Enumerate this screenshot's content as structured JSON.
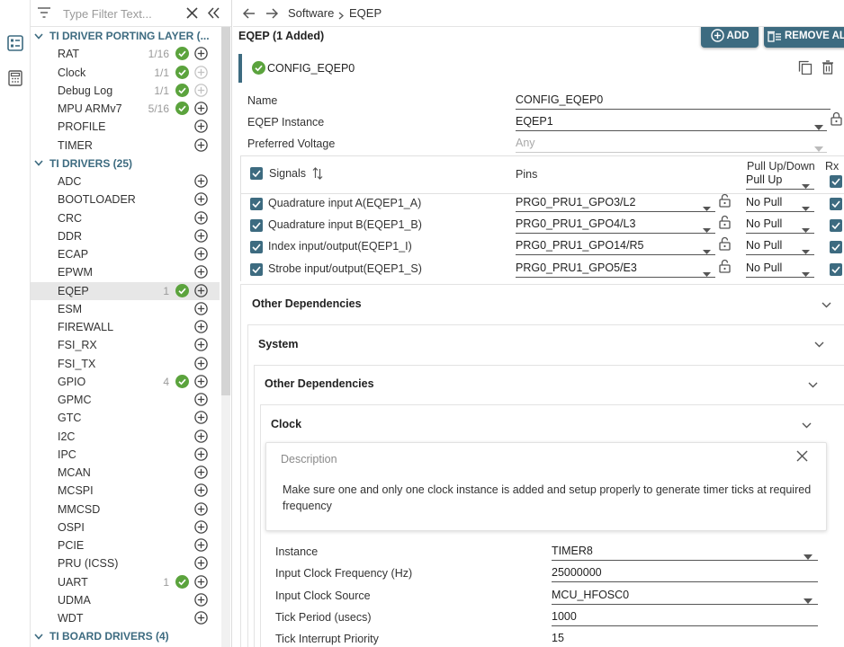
{
  "sidebar": {
    "filter_placeholder": "Type Filter Text...",
    "categories": [
      {
        "label": "TI DRIVER PORTING LAYER (...",
        "items": [
          {
            "label": "RAT",
            "count": "1/16",
            "status": "ok",
            "add_enabled": true
          },
          {
            "label": "Clock",
            "count": "1/1",
            "status": "ok",
            "add_enabled": false
          },
          {
            "label": "Debug Log",
            "count": "1/1",
            "status": "ok",
            "add_enabled": false
          },
          {
            "label": "MPU ARMv7",
            "count": "5/16",
            "status": "ok",
            "add_enabled": true
          },
          {
            "label": "PROFILE",
            "count": "",
            "status": "",
            "add_enabled": true
          },
          {
            "label": "TIMER",
            "count": "",
            "status": "",
            "add_enabled": true
          }
        ]
      },
      {
        "label": "TI DRIVERS (25)",
        "items": [
          {
            "label": "ADC",
            "count": "",
            "status": "",
            "add_enabled": true
          },
          {
            "label": "BOOTLOADER",
            "count": "",
            "status": "",
            "add_enabled": true
          },
          {
            "label": "CRC",
            "count": "",
            "status": "",
            "add_enabled": true
          },
          {
            "label": "DDR",
            "count": "",
            "status": "",
            "add_enabled": true
          },
          {
            "label": "ECAP",
            "count": "",
            "status": "",
            "add_enabled": true
          },
          {
            "label": "EPWM",
            "count": "",
            "status": "",
            "add_enabled": true
          },
          {
            "label": "EQEP",
            "count": "1",
            "status": "ok",
            "add_enabled": true,
            "selected": true
          },
          {
            "label": "ESM",
            "count": "",
            "status": "",
            "add_enabled": true
          },
          {
            "label": "FIREWALL",
            "count": "",
            "status": "",
            "add_enabled": true
          },
          {
            "label": "FSI_RX",
            "count": "",
            "status": "",
            "add_enabled": true
          },
          {
            "label": "FSI_TX",
            "count": "",
            "status": "",
            "add_enabled": true
          },
          {
            "label": "GPIO",
            "count": "4",
            "status": "ok",
            "add_enabled": true
          },
          {
            "label": "GPMC",
            "count": "",
            "status": "",
            "add_enabled": true
          },
          {
            "label": "GTC",
            "count": "",
            "status": "",
            "add_enabled": true
          },
          {
            "label": "I2C",
            "count": "",
            "status": "",
            "add_enabled": true
          },
          {
            "label": "IPC",
            "count": "",
            "status": "",
            "add_enabled": true
          },
          {
            "label": "MCAN",
            "count": "",
            "status": "",
            "add_enabled": true
          },
          {
            "label": "MCSPI",
            "count": "",
            "status": "",
            "add_enabled": true
          },
          {
            "label": "MMCSD",
            "count": "",
            "status": "",
            "add_enabled": true
          },
          {
            "label": "OSPI",
            "count": "",
            "status": "",
            "add_enabled": true
          },
          {
            "label": "PCIE",
            "count": "",
            "status": "",
            "add_enabled": true
          },
          {
            "label": "PRU (ICSS)",
            "count": "",
            "status": "",
            "add_enabled": true
          },
          {
            "label": "UART",
            "count": "1",
            "status": "ok",
            "add_enabled": true
          },
          {
            "label": "UDMA",
            "count": "",
            "status": "",
            "add_enabled": true
          },
          {
            "label": "WDT",
            "count": "",
            "status": "",
            "add_enabled": true
          }
        ]
      },
      {
        "label": "TI BOARD DRIVERS (4)",
        "items": []
      }
    ]
  },
  "breadcrumb": {
    "root": "Software",
    "current": "EQEP"
  },
  "module": {
    "title": "EQEP (1 Added)",
    "add_label": "ADD",
    "remove_all_label": "REMOVE ALL",
    "instance_name": "CONFIG_EQEP0"
  },
  "config": {
    "name_label": "Name",
    "name_value": "CONFIG_EQEP0",
    "instance_label": "EQEP Instance",
    "instance_value": "EQEP1",
    "voltage_label": "Preferred Voltage",
    "voltage_value": "Any"
  },
  "signals": {
    "header_signals": "Signals",
    "header_pins": "Pins",
    "header_pull": "Pull Up/Down",
    "header_pull_value": "Pull Up",
    "header_rx": "Rx",
    "rows": [
      {
        "name": "Quadrature input A(EQEP1_A)",
        "pin": "PRG0_PRU1_GPO3/L2",
        "pull": "No Pull"
      },
      {
        "name": "Quadrature input B(EQEP1_B)",
        "pin": "PRG0_PRU1_GPO4/L3",
        "pull": "No Pull"
      },
      {
        "name": "Index input/output(EQEP1_I)",
        "pin": "PRG0_PRU1_GPO14/R5",
        "pull": "No Pull"
      },
      {
        "name": "Strobe input/output(EQEP1_S)",
        "pin": "PRG0_PRU1_GPO5/E3",
        "pull": "No Pull"
      }
    ]
  },
  "deps": {
    "other_deps_1": "Other Dependencies",
    "system": "System",
    "other_deps_2": "Other Dependencies",
    "clock": "Clock",
    "description_title": "Description",
    "description_text": "Make sure one and only one clock instance is added and setup properly to generate timer ticks at required frequency"
  },
  "clock_config": [
    {
      "label": "Instance",
      "value": "TIMER8",
      "dropdown": true
    },
    {
      "label": "Input Clock Frequency (Hz)",
      "value": "25000000",
      "dropdown": false
    },
    {
      "label": "Input Clock Source",
      "value": "MCU_HFOSC0",
      "dropdown": true
    },
    {
      "label": "Tick Period (usecs)",
      "value": "1000",
      "dropdown": false
    },
    {
      "label": "Tick Interrupt Priority",
      "value": "15",
      "dropdown": false
    }
  ],
  "colors": {
    "accent": "#3d6b80",
    "success": "#5ba33d"
  }
}
